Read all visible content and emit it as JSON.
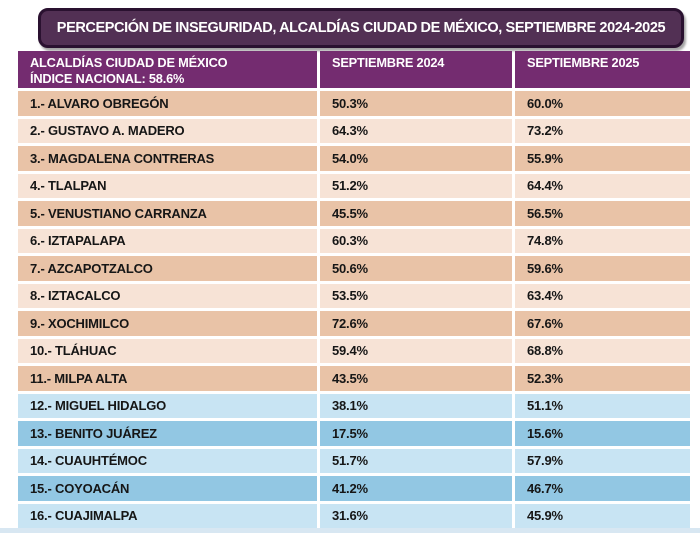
{
  "title": "PERCEPCIÓN DE INSEGURIDAD, ALCALDÍAS CIUDAD DE MÉXICO, SEPTIEMBRE 2024-2025",
  "table": {
    "header": {
      "col1_line1": "ALCALDÍAS CIUDAD DE MÉXICO",
      "col1_line2": "ÍNDICE NACIONAL: 58.6%",
      "col2": "SEPTIEMBRE 2024",
      "col3": "SEPTIEMBRE 2025"
    },
    "rows": [
      {
        "name": "1.- ALVARO OBREGÓN",
        "sep2024": "50.3%",
        "sep2025": "60.0%",
        "tone": "peach-dark"
      },
      {
        "name": "2.- GUSTAVO A. MADERO",
        "sep2024": "64.3%",
        "sep2025": "73.2%",
        "tone": "peach-light"
      },
      {
        "name": "3.- MAGDALENA CONTRERAS",
        "sep2024": "54.0%",
        "sep2025": "55.9%",
        "tone": "peach-dark"
      },
      {
        "name": "4.- TLALPAN",
        "sep2024": "51.2%",
        "sep2025": "64.4%",
        "tone": "peach-light"
      },
      {
        "name": "5.- VENUSTIANO CARRANZA",
        "sep2024": "45.5%",
        "sep2025": "56.5%",
        "tone": "peach-dark"
      },
      {
        "name": "6.- IZTAPALAPA",
        "sep2024": "60.3%",
        "sep2025": "74.8%",
        "tone": "peach-light"
      },
      {
        "name": "7.- AZCAPOTZALCO",
        "sep2024": "50.6%",
        "sep2025": "59.6%",
        "tone": "peach-dark"
      },
      {
        "name": "8.- IZTACALCO",
        "sep2024": "53.5%",
        "sep2025": "63.4%",
        "tone": "peach-light"
      },
      {
        "name": "9.- XOCHIMILCO",
        "sep2024": "72.6%",
        "sep2025": "67.6%",
        "tone": "peach-dark"
      },
      {
        "name": "10.- TLÁHUAC",
        "sep2024": "59.4%",
        "sep2025": "68.8%",
        "tone": "peach-light"
      },
      {
        "name": "11.- MILPA ALTA",
        "sep2024": "43.5%",
        "sep2025": "52.3%",
        "tone": "peach-dark"
      },
      {
        "name": "12.- MIGUEL HIDALGO",
        "sep2024": "38.1%",
        "sep2025": "51.1%",
        "tone": "blue-light"
      },
      {
        "name": "13.- BENITO JUÁREZ",
        "sep2024": "17.5%",
        "sep2025": "15.6%",
        "tone": "blue-dark"
      },
      {
        "name": "14.- CUAUHTÉMOC",
        "sep2024": "51.7%",
        "sep2025": "57.9%",
        "tone": "blue-light"
      },
      {
        "name": "15.- COYOACÁN",
        "sep2024": "41.2%",
        "sep2025": "46.7%",
        "tone": "blue-dark"
      },
      {
        "name": "16.- CUAJIMALPA",
        "sep2024": "31.6%",
        "sep2025": "45.9%",
        "tone": "blue-light"
      }
    ]
  },
  "colors": {
    "title_bar_bg": "#523054",
    "title_bar_border": "#2a1130",
    "header_bg": "#742c70",
    "peach_dark": "#e9c3a7",
    "peach_light": "#f7e3d6",
    "blue_dark": "#92c7e3",
    "blue_light": "#c8e4f3",
    "text": "#161616"
  },
  "chart_data": {
    "type": "table",
    "title": "PERCEPCIÓN DE INSEGURIDAD, ALCALDÍAS CIUDAD DE MÉXICO, SEPTIEMBRE 2024-2025",
    "national_index_pct": 58.6,
    "columns": [
      "ALCALDÍAS CIUDAD DE MÉXICO",
      "SEPTIEMBRE 2024",
      "SEPTIEMBRE 2025"
    ],
    "rows": [
      [
        "ALVARO OBREGÓN",
        50.3,
        60.0
      ],
      [
        "GUSTAVO A. MADERO",
        64.3,
        73.2
      ],
      [
        "MAGDALENA CONTRERAS",
        54.0,
        55.9
      ],
      [
        "TLALPAN",
        51.2,
        64.4
      ],
      [
        "VENUSTIANO CARRANZA",
        45.5,
        56.5
      ],
      [
        "IZTAPALAPA",
        60.3,
        74.8
      ],
      [
        "AZCAPOTZALCO",
        50.6,
        59.6
      ],
      [
        "IZTACALCO",
        53.5,
        63.4
      ],
      [
        "XOCHIMILCO",
        72.6,
        67.6
      ],
      [
        "TLÁHUAC",
        59.4,
        68.8
      ],
      [
        "MILPA ALTA",
        43.5,
        52.3
      ],
      [
        "MIGUEL HIDALGO",
        38.1,
        51.1
      ],
      [
        "BENITO JUÁREZ",
        17.5,
        15.6
      ],
      [
        "CUAUHTÉMOC",
        51.7,
        57.9
      ],
      [
        "COYOACÁN",
        41.2,
        46.7
      ],
      [
        "CUAJIMALPA",
        31.6,
        45.9
      ]
    ]
  }
}
